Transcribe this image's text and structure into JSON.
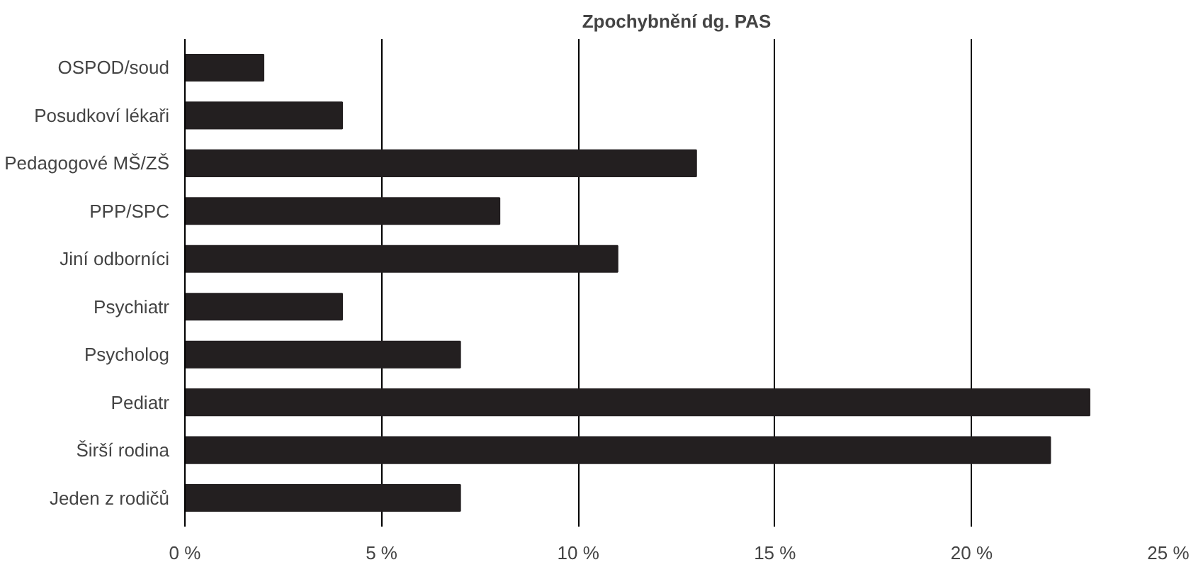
{
  "chart_data": {
    "type": "bar",
    "orientation": "horizontal",
    "title": "Zpochybnění dg. PAS",
    "categories": [
      "OSPOD/soud",
      "Posudkoví lékaři",
      "Pedagogové MŠ/ZŠ",
      "PPP/SPC",
      "Jiní odborníci",
      "Psychiatr",
      "Psycholog",
      "Pediatr",
      "Širší rodina",
      "Jeden z rodičů"
    ],
    "values": [
      2,
      4,
      13,
      8,
      11,
      4,
      7,
      23,
      22,
      7
    ],
    "color": "#231f20",
    "xlim": [
      0,
      25
    ],
    "xticks": [
      {
        "value": 0,
        "label": "0 %"
      },
      {
        "value": 5,
        "label": "5 %"
      },
      {
        "value": 10,
        "label": "10 %"
      },
      {
        "value": 15,
        "label": "15 %"
      },
      {
        "value": 20,
        "label": "20 %"
      },
      {
        "value": 25,
        "label": "25 %"
      }
    ],
    "grid": "x"
  }
}
